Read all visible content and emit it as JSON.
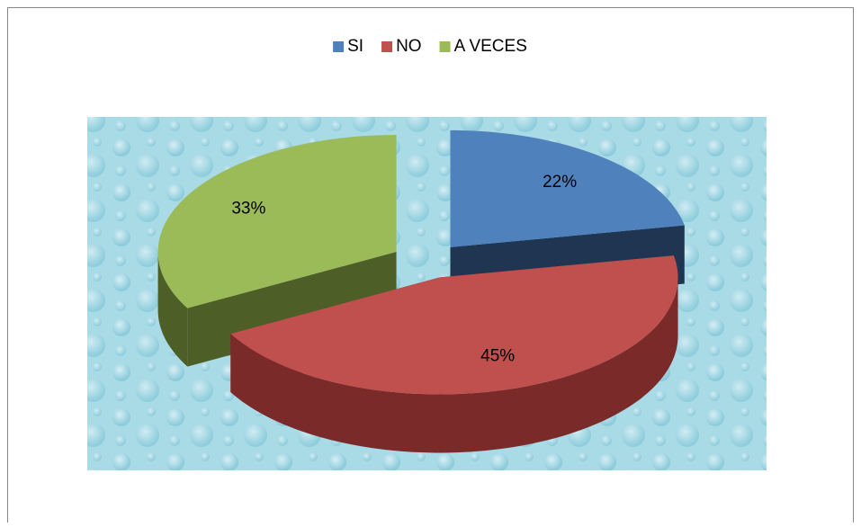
{
  "chart_data": {
    "type": "pie",
    "categories": [
      "SI",
      "NO",
      "A VECES"
    ],
    "values": [
      22,
      45,
      33
    ],
    "value_labels": [
      "22%",
      "45%",
      "33%"
    ],
    "colors": [
      "#4f81bd",
      "#c0504d",
      "#9bbb59"
    ],
    "side_colors": [
      "#1f3552",
      "#7a2b29",
      "#4e5e27"
    ],
    "legend": "top",
    "three_d": true,
    "exploded": true
  }
}
